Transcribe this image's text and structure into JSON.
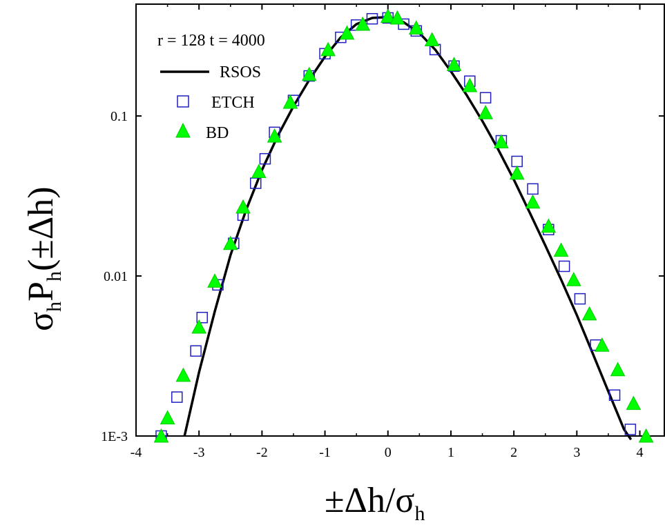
{
  "chart_data": {
    "type": "scatter",
    "title": "r = 128 t = 4000",
    "xlabel": {
      "main": "±Δh/σ",
      "sub": "h"
    },
    "ylabel": {
      "p1": "σ",
      "s1": "h",
      "p2": "P",
      "s2": "h",
      "p3": "(±Δh)"
    },
    "xlim": [
      -4,
      4.4
    ],
    "ylim": [
      0.001,
      0.5
    ],
    "yscale": "log",
    "x_ticks": [
      -4,
      -3,
      -2,
      -1,
      0,
      1,
      2,
      3,
      4
    ],
    "x_tick_labels": [
      "-4",
      "-3",
      "-2",
      "-1",
      "0",
      "1",
      "2",
      "3",
      "4"
    ],
    "y_ticks": [
      0.001,
      0.01,
      0.1
    ],
    "y_tick_labels": [
      "1E-3",
      "0.01",
      "0.1"
    ],
    "grid": false,
    "legend_position": "top-left",
    "series": [
      {
        "name": "RSOS",
        "kind": "line",
        "color": "#000000",
        "x": [
          -3.23,
          -3.0,
          -2.75,
          -2.5,
          -2.25,
          -2.0,
          -1.75,
          -1.5,
          -1.25,
          -1.0,
          -0.75,
          -0.5,
          -0.25,
          0.0,
          0.25,
          0.5,
          0.75,
          1.0,
          1.25,
          1.5,
          1.75,
          2.0,
          2.25,
          2.5,
          2.75,
          3.0,
          3.25,
          3.5,
          3.75,
          3.86
        ],
        "y": [
          0.001,
          0.0025,
          0.006,
          0.0135,
          0.026,
          0.046,
          0.075,
          0.115,
          0.168,
          0.235,
          0.31,
          0.375,
          0.41,
          0.415,
          0.385,
          0.33,
          0.26,
          0.19,
          0.135,
          0.093,
          0.062,
          0.04,
          0.025,
          0.0155,
          0.0095,
          0.0057,
          0.0033,
          0.0019,
          0.0011,
          0.00095
        ]
      },
      {
        "name": "ETCH",
        "kind": "marker",
        "marker": "open-square",
        "color": "#1f1fbf",
        "x": [
          -3.6,
          -3.35,
          -3.05,
          -2.95,
          -2.7,
          -2.45,
          -2.3,
          -2.1,
          -1.95,
          -1.8,
          -1.5,
          -1.25,
          -1.0,
          -0.75,
          -0.5,
          -0.25,
          0.0,
          0.25,
          0.45,
          0.75,
          1.05,
          1.3,
          1.55,
          1.8,
          2.05,
          2.3,
          2.55,
          2.8,
          3.05,
          3.3,
          3.6,
          3.85
        ],
        "y": [
          0.001,
          0.00175,
          0.0034,
          0.0055,
          0.0088,
          0.016,
          0.024,
          0.038,
          0.054,
          0.079,
          0.125,
          0.178,
          0.245,
          0.31,
          0.37,
          0.405,
          0.41,
          0.375,
          0.34,
          0.26,
          0.205,
          0.165,
          0.13,
          0.07,
          0.052,
          0.035,
          0.0195,
          0.0115,
          0.0072,
          0.0037,
          0.0018,
          0.0011
        ]
      },
      {
        "name": "BD",
        "kind": "marker",
        "marker": "filled-triangle",
        "color": "#00ff00",
        "x": [
          -3.6,
          -3.5,
          -3.25,
          -3.0,
          -2.75,
          -2.5,
          -2.3,
          -2.05,
          -1.8,
          -1.55,
          -1.25,
          -0.95,
          -0.65,
          -0.4,
          0.0,
          0.15,
          0.45,
          0.7,
          1.05,
          1.3,
          1.55,
          1.8,
          2.05,
          2.3,
          2.55,
          2.75,
          2.95,
          3.2,
          3.4,
          3.65,
          3.9,
          4.1
        ],
        "y": [
          0.001,
          0.0013,
          0.0024,
          0.0048,
          0.0093,
          0.016,
          0.027,
          0.045,
          0.075,
          0.122,
          0.182,
          0.26,
          0.33,
          0.375,
          0.42,
          0.41,
          0.355,
          0.3,
          0.21,
          0.155,
          0.105,
          0.069,
          0.044,
          0.029,
          0.0205,
          0.0145,
          0.0095,
          0.0058,
          0.0037,
          0.0026,
          0.0016,
          0.001
        ]
      }
    ]
  }
}
